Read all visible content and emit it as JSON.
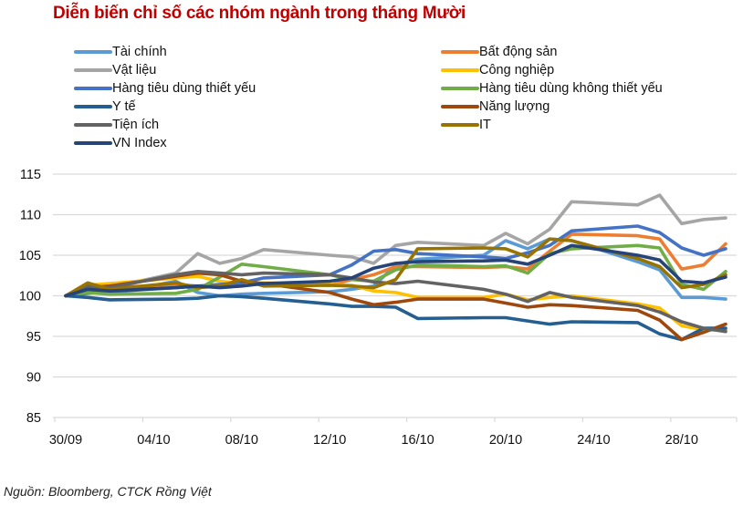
{
  "chart_data": {
    "type": "line",
    "title": "Diễn biến chỉ số các nhóm ngành trong tháng Mười",
    "xlabel": "",
    "ylabel": "",
    "ylim": [
      85,
      115
    ],
    "yticks": [
      "85",
      "90",
      "95",
      "100",
      "105",
      "110",
      "115"
    ],
    "xticks": [
      "30/09",
      "04/10",
      "08/10",
      "12/10",
      "16/10",
      "20/10",
      "24/10",
      "28/10"
    ],
    "xtick_days": [
      0,
      4,
      8,
      12,
      16,
      20,
      24,
      28
    ],
    "x_days": [
      0,
      1,
      2,
      5,
      6,
      7,
      8,
      9,
      12,
      13,
      14,
      15,
      16,
      19,
      20,
      21,
      22,
      23,
      26,
      27,
      28,
      29,
      30
    ],
    "x_max_day": 31,
    "grid": "horizontal",
    "legend_position": "top",
    "series": [
      {
        "name": "Tài chính",
        "color": "#5b9bd5",
        "values": [
          100,
          100.6,
          100.2,
          101.8,
          100.4,
          100.0,
          100.2,
          100.3,
          100.5,
          100.8,
          101.2,
          103.8,
          104.5,
          105.0,
          106.8,
          105.8,
          107.0,
          106.8,
          104.2,
          103.2,
          99.8,
          99.8,
          99.6
        ]
      },
      {
        "name": "Bất động sản",
        "color": "#ed7d31",
        "values": [
          100,
          100.8,
          101.0,
          101.4,
          101.2,
          101.2,
          101.4,
          101.5,
          101.3,
          102.0,
          102.6,
          103.6,
          103.6,
          103.5,
          103.6,
          103.3,
          105.5,
          107.6,
          107.4,
          107.0,
          103.3,
          103.8,
          106.4
        ]
      },
      {
        "name": "Vật liệu",
        "color": "#a5a5a5",
        "values": [
          100,
          100.5,
          101.0,
          102.8,
          105.2,
          104.0,
          104.6,
          105.7,
          105.0,
          104.8,
          104.0,
          106.2,
          106.6,
          106.2,
          107.7,
          106.4,
          108.2,
          111.6,
          111.2,
          112.4,
          108.9,
          109.4,
          109.6
        ]
      },
      {
        "name": "Công nghiệp",
        "color": "#ffc000",
        "values": [
          100,
          101.3,
          101.5,
          102.2,
          102.4,
          101.8,
          101.5,
          101.6,
          101.4,
          101.3,
          100.6,
          100.4,
          99.8,
          99.8,
          100.2,
          99.5,
          99.8,
          100.0,
          99.0,
          98.5,
          96.3,
          95.8,
          95.8
        ]
      },
      {
        "name": "Hàng tiêu dùng thiết yếu",
        "color": "#4472c4",
        "values": [
          100,
          100.3,
          100.5,
          101.0,
          101.2,
          101.4,
          101.6,
          102.2,
          102.6,
          103.8,
          105.5,
          105.7,
          105.2,
          104.8,
          104.6,
          105.3,
          106.2,
          108.0,
          108.6,
          107.8,
          105.9,
          105.0,
          105.8
        ]
      },
      {
        "name": "Hàng tiêu dùng không thiết yếu",
        "color": "#70ad47",
        "values": [
          100,
          100.4,
          100.2,
          100.3,
          100.8,
          102.3,
          103.9,
          103.6,
          102.6,
          102.0,
          101.8,
          103.2,
          103.8,
          103.6,
          103.7,
          102.8,
          105.2,
          105.8,
          106.2,
          105.9,
          101.4,
          100.8,
          103.0
        ]
      },
      {
        "name": "Y tế",
        "color": "#255e91",
        "values": [
          100,
          99.8,
          99.5,
          99.6,
          99.7,
          100.0,
          99.9,
          99.7,
          99.0,
          98.7,
          98.7,
          98.6,
          97.2,
          97.3,
          97.3,
          96.9,
          96.5,
          96.8,
          96.7,
          95.3,
          94.6,
          96.0,
          96.0
        ]
      },
      {
        "name": "Năng lượng",
        "color": "#9e480e",
        "values": [
          100,
          101.0,
          101.2,
          102.4,
          102.8,
          102.6,
          101.8,
          101.5,
          100.4,
          99.6,
          98.9,
          99.2,
          99.6,
          99.6,
          99.1,
          98.6,
          98.9,
          98.8,
          98.2,
          97.0,
          94.6,
          95.5,
          96.5
        ]
      },
      {
        "name": "Tiện ích",
        "color": "#636363",
        "values": [
          100,
          101.2,
          101.0,
          102.6,
          103.0,
          102.8,
          102.6,
          102.8,
          102.6,
          102.2,
          101.7,
          101.5,
          101.8,
          100.8,
          100.2,
          99.3,
          100.4,
          99.8,
          98.8,
          98.0,
          96.8,
          96.0,
          95.6
        ]
      },
      {
        "name": "IT",
        "color": "#997300",
        "values": [
          100,
          101.6,
          100.8,
          101.6,
          101.0,
          101.2,
          102.0,
          101.2,
          101.3,
          101.2,
          101.0,
          102.0,
          105.8,
          105.9,
          105.8,
          104.8,
          107.0,
          106.8,
          104.6,
          103.6,
          101.0,
          101.4,
          102.6
        ]
      },
      {
        "name": "VN Index",
        "color": "#264478",
        "values": [
          100,
          100.8,
          100.6,
          101.0,
          101.2,
          101.0,
          101.2,
          101.5,
          101.8,
          102.2,
          103.4,
          104.0,
          104.2,
          104.3,
          104.4,
          103.9,
          105.0,
          106.2,
          105.0,
          104.4,
          101.8,
          101.6,
          102.3
        ]
      }
    ]
  },
  "legend": {
    "left": [
      "Tài chính",
      "Vật liệu",
      "Hàng tiêu dùng thiết yếu",
      "Y tế",
      "Tiện ích",
      "VN Index"
    ],
    "right": [
      "Bất động sản",
      "Công nghiệp",
      "Hàng tiêu dùng không thiết yếu",
      "Năng lượng",
      "IT"
    ]
  },
  "source": "Nguồn: Bloomberg, CTCK Rồng Việt",
  "colors": {
    "title": "#c00000",
    "grid": "#d9d9d9"
  }
}
